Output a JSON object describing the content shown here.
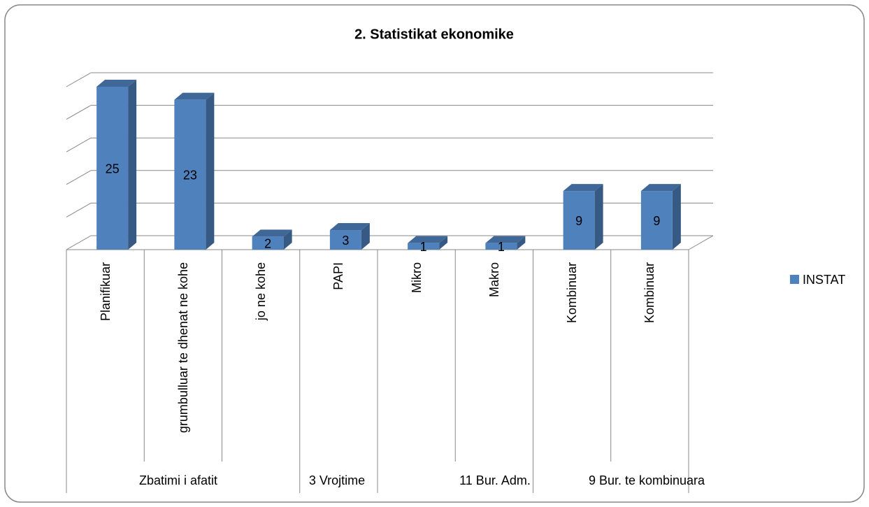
{
  "chart_data": {
    "type": "bar3d",
    "title": "2. Statistikat ekonomike",
    "categories": [
      "Planifikuar",
      "grumbulluar te dhenat ne kohe",
      "jo ne kohe",
      "PAPI",
      "Mikro",
      "Makro",
      "Kombinuar",
      "Kombinuar"
    ],
    "groups": [
      {
        "label": "Zbatimi i afatit",
        "size": 3
      },
      {
        "label": "3 Vrojtime",
        "size": 1
      },
      {
        "label": "11 Bur. Adm.",
        "size": 2
      },
      {
        "label": "9 Bur. te kombinuara",
        "size": 2
      }
    ],
    "series": [
      {
        "name": "INSTAT",
        "color": "#4f81bd",
        "values": [
          25,
          23,
          2,
          3,
          1,
          1,
          9,
          9
        ]
      }
    ],
    "ylim": [
      0,
      25
    ],
    "yticks": [
      0,
      5,
      10,
      15,
      20,
      25
    ],
    "grid": true,
    "legend": "right"
  }
}
